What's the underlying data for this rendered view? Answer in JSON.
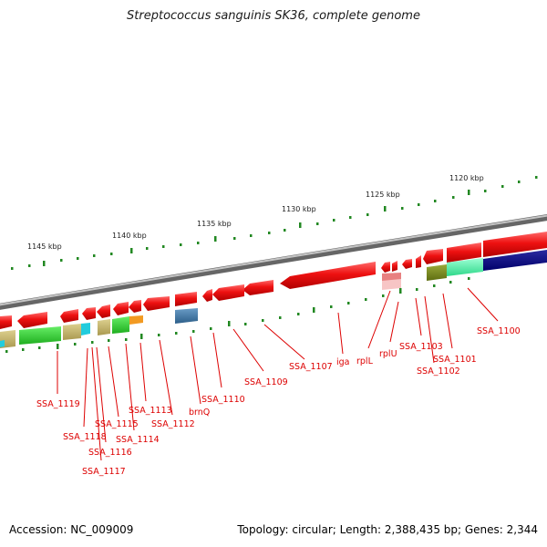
{
  "title": "Streptococcus sanguinis SK36, complete genome",
  "footer": {
    "accession": "Accession: NC_009009",
    "summary": "Topology: circular; Length: 2,388,435 bp; Genes: 2,344"
  },
  "kbp_labels": [
    "1145 kbp",
    "1140 kbp",
    "1135 kbp",
    "1130 kbp",
    "1125 kbp",
    "1120 kbp"
  ],
  "gene_labels": [
    "SSA_1100",
    "SSA_1101",
    "SSA_1102",
    "SSA_1103",
    "rplU",
    "rplL",
    "iga",
    "SSA_1107",
    "SSA_1109",
    "SSA_1110",
    "brnQ",
    "SSA_1112",
    "SSA_1113",
    "SSA_1114",
    "SSA_1115",
    "SSA_1116",
    "SSA_1117",
    "SSA_1118",
    "SSA_1119"
  ],
  "colors": {
    "gene_red": "#ee1111",
    "label_red": "#dd0000",
    "tick_green": "#228822",
    "backbone": "#888888"
  }
}
